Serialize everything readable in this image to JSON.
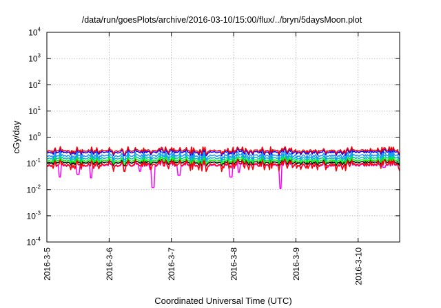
{
  "chart_data": {
    "type": "line",
    "title": "/data/run/goesPlots/archive/2016-03-10/15:00/flux/../bryn/5daysMoon.plot",
    "xlabel": "Coordinated Universal Time (UTC)",
    "ylabel": "cGy/day",
    "yscale": "log",
    "ylim": [
      0.0001,
      10000
    ],
    "ytick_exponents": [
      -4,
      -3,
      -2,
      -1,
      0,
      1,
      2,
      3,
      4
    ],
    "ytick_base": "10",
    "xlim": [
      "2016-03-05T00:00",
      "2016-03-10T16:00"
    ],
    "xticks": [
      {
        "label": "2016-3-5",
        "t": "2016-03-05T00:00"
      },
      {
        "label": "2016-3-6",
        "t": "2016-03-06T00:00"
      },
      {
        "label": "2016-3-7",
        "t": "2016-03-07T00:00"
      },
      {
        "label": "2016-3-8",
        "t": "2016-03-08T00:00"
      },
      {
        "label": "2016-3-9",
        "t": "2016-03-09T00:00"
      },
      {
        "label": "2016-3-10",
        "t": "2016-03-10T00:00"
      }
    ],
    "grid": true,
    "legend": false,
    "series": [
      {
        "color": "#ff00ff",
        "base": 0.085,
        "amplitude": 0.05,
        "dips": [
          {
            "t": "2016-03-05T05:00",
            "value": 0.03
          },
          {
            "t": "2016-03-05T12:00",
            "value": 0.038
          },
          {
            "t": "2016-03-05T17:00",
            "value": 0.028
          },
          {
            "t": "2016-03-06T12:00",
            "value": 0.05
          },
          {
            "t": "2016-03-06T16:00",
            "value": 0.06
          },
          {
            "t": "2016-03-06T17:00",
            "value": 0.012
          },
          {
            "t": "2016-03-07T03:00",
            "value": 0.035
          },
          {
            "t": "2016-03-07T23:00",
            "value": 0.03
          },
          {
            "t": "2016-03-08T02:00",
            "value": 0.045
          },
          {
            "t": "2016-03-08T18:00",
            "value": 0.011
          },
          {
            "t": "2016-03-09T12:00",
            "value": 0.07
          },
          {
            "t": "2016-03-10T10:00",
            "value": 0.07
          }
        ]
      },
      {
        "color": "#000000",
        "base": 0.11,
        "amplitude": 0.045,
        "dips": []
      },
      {
        "color": "#ff0000",
        "base": 0.09,
        "amplitude": 0.06,
        "dips": []
      },
      {
        "color": "#00ff00",
        "base": 0.13,
        "amplitude": 0.05,
        "dips": []
      },
      {
        "color": "#00c0c0",
        "base": 0.16,
        "amplitude": 0.06,
        "dips": []
      },
      {
        "color": "#1e90ff",
        "base": 0.2,
        "amplitude": 0.08,
        "dips": []
      },
      {
        "color": "#0000ff",
        "base": 0.27,
        "amplitude": 0.09,
        "dips": []
      },
      {
        "color": "#ff0000",
        "base": 0.31,
        "amplitude": 0.1,
        "dips": []
      }
    ]
  }
}
